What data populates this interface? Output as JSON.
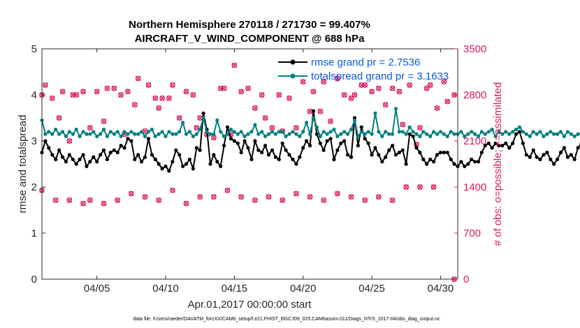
{
  "chart_data": {
    "type": "line",
    "title_line1": "Northern Hemisphere 270118 / 271730 = 99.407%",
    "title_line2": "AIRCRAFT_V_WIND_COMPONENT @ 688 hPa",
    "xlabel": "Apr.01,2017 00:00:00 start",
    "ylabel_left": "rmse and totalspread",
    "ylabel_right": "# of obs: o=possible; ×=assimilated",
    "xlim": [
      1,
      31.25
    ],
    "ylim_left": [
      0,
      5
    ],
    "ylim_right": [
      0,
      3500
    ],
    "x_ticks": [
      {
        "value": 5,
        "label": "04/05"
      },
      {
        "value": 10,
        "label": "04/10"
      },
      {
        "value": 15,
        "label": "04/15"
      },
      {
        "value": 20,
        "label": "04/20"
      },
      {
        "value": 25,
        "label": "04/25"
      },
      {
        "value": 30,
        "label": "04/30"
      }
    ],
    "y_ticks_left": [
      {
        "value": 0,
        "label": "0"
      },
      {
        "value": 1,
        "label": "1"
      },
      {
        "value": 2,
        "label": "2"
      },
      {
        "value": 3,
        "label": "3"
      },
      {
        "value": 4,
        "label": "4"
      },
      {
        "value": 5,
        "label": "5"
      }
    ],
    "y_ticks_right": [
      {
        "value": 0,
        "label": "0"
      },
      {
        "value": 700,
        "label": "700"
      },
      {
        "value": 1400,
        "label": "1400"
      },
      {
        "value": 2100,
        "label": "2100"
      },
      {
        "value": 2800,
        "label": "2800"
      },
      {
        "value": 3500,
        "label": "3500"
      }
    ],
    "x_start": 1,
    "x_step": 0.25,
    "series": [
      {
        "name": "rmse grand pr = 2.7536",
        "color": "#000000",
        "axis": "left",
        "values": [
          2.75,
          3.0,
          2.85,
          2.7,
          2.6,
          2.8,
          2.65,
          2.55,
          2.7,
          2.6,
          2.5,
          2.6,
          2.7,
          2.45,
          2.55,
          2.65,
          2.55,
          2.7,
          2.8,
          2.6,
          2.75,
          2.8,
          2.75,
          2.9,
          2.85,
          3.05,
          3.0,
          2.6,
          2.7,
          2.55,
          2.65,
          3.05,
          2.7,
          2.6,
          2.5,
          2.4,
          2.45,
          2.35,
          2.55,
          2.8,
          2.7,
          2.45,
          2.5,
          2.6,
          2.4,
          2.85,
          2.8,
          3.6,
          3.25,
          2.5,
          2.7,
          2.55,
          2.45,
          2.9,
          3.3,
          3.05,
          3.0,
          2.95,
          2.75,
          3.0,
          2.85,
          2.6,
          3.0,
          2.8,
          2.75,
          2.9,
          2.7,
          2.8,
          2.65,
          2.6,
          2.95,
          2.8,
          2.7,
          2.6,
          2.5,
          2.65,
          2.85,
          3.0,
          2.9,
          3.65,
          3.15,
          2.95,
          2.8,
          3.0,
          3.05,
          2.6,
          2.8,
          2.95,
          3.0,
          2.7,
          2.65,
          3.5,
          2.9,
          3.3,
          3.05,
          2.95,
          2.7,
          2.85,
          2.7,
          2.55,
          2.65,
          2.8,
          2.9,
          2.7,
          2.75,
          2.8,
          2.5,
          3.15,
          3.1,
          2.85,
          2.75,
          2.6,
          2.5,
          2.6,
          2.55,
          2.7,
          2.75,
          2.75,
          2.75,
          2.6,
          2.5,
          2.45,
          2.55,
          2.45,
          2.5,
          2.6,
          2.55,
          2.55,
          2.75,
          2.9,
          2.95,
          2.85,
          2.95,
          2.9,
          2.9,
          2.95,
          2.85,
          2.95,
          3.15,
          3.2,
          2.95,
          2.7,
          2.65,
          2.8,
          2.65,
          2.6,
          2.7,
          2.75,
          2.6,
          2.5,
          2.6,
          2.75,
          2.85,
          2.65,
          2.7,
          2.6,
          2.85,
          2.95
        ]
      },
      {
        "name": "totalspread grand pr = 3.1633",
        "color": "#008080",
        "axis": "left",
        "values": [
          3.45,
          3.15,
          3.2,
          3.15,
          3.25,
          3.15,
          3.2,
          3.1,
          3.2,
          3.15,
          3.25,
          3.1,
          3.2,
          3.15,
          3.15,
          3.2,
          3.1,
          3.15,
          3.25,
          3.1,
          3.2,
          3.15,
          3.2,
          3.1,
          3.2,
          3.15,
          3.2,
          3.15,
          3.15,
          3.2,
          3.1,
          3.2,
          3.25,
          3.1,
          3.15,
          3.2,
          3.1,
          3.2,
          3.15,
          3.15,
          3.2,
          3.4,
          3.15,
          3.2,
          3.1,
          3.15,
          3.25,
          3.5,
          3.2,
          3.15,
          3.15,
          3.45,
          3.2,
          3.1,
          3.15,
          3.25,
          3.2,
          3.15,
          3.2,
          3.1,
          3.15,
          3.2,
          3.35,
          3.15,
          3.2,
          3.1,
          3.15,
          3.2,
          3.15,
          3.2,
          3.2,
          3.1,
          3.15,
          3.2,
          3.15,
          3.1,
          3.2,
          3.4,
          3.15,
          3.5,
          3.3,
          3.1,
          3.2,
          3.15,
          3.2,
          3.25,
          3.1,
          3.15,
          3.2,
          3.15,
          3.25,
          3.45,
          3.1,
          3.2,
          3.15,
          3.2,
          3.15,
          3.6,
          3.2,
          3.1,
          3.2,
          3.15,
          3.15,
          3.7,
          3.2,
          3.2,
          3.15,
          3.3,
          3.2,
          3.15,
          3.1,
          3.2,
          3.15,
          3.1,
          3.2,
          3.15,
          3.2,
          3.15,
          3.1,
          3.2,
          3.15,
          3.15,
          3.2,
          3.1,
          3.15,
          3.2,
          3.15,
          3.1,
          3.2,
          3.15,
          3.2,
          3.25,
          3.1,
          3.2,
          3.15,
          3.2,
          3.15,
          3.2,
          3.25,
          3.3,
          3.2,
          3.15,
          3.1,
          3.2,
          3.15,
          3.2,
          3.1,
          3.15,
          3.2,
          3.15,
          3.15,
          3.2,
          3.1,
          3.2,
          3.15,
          3.1,
          3.15,
          3.15,
          3.2,
          3.2
        ]
      }
    ],
    "obs_possible": [
      {
        "x": 1.0,
        "y": 2800
      },
      {
        "x": 1.25,
        "y": 2950
      },
      {
        "x": 1.75,
        "y": 2750
      },
      {
        "x": 2.25,
        "y": 2450
      },
      {
        "x": 2.5,
        "y": 2850
      },
      {
        "x": 3.0,
        "y": 2100
      },
      {
        "x": 3.25,
        "y": 2800
      },
      {
        "x": 3.5,
        "y": 2800
      },
      {
        "x": 4.0,
        "y": 2850
      },
      {
        "x": 4.5,
        "y": 2300
      },
      {
        "x": 5.0,
        "y": 2850
      },
      {
        "x": 5.5,
        "y": 2400
      },
      {
        "x": 5.75,
        "y": 2900
      },
      {
        "x": 6.25,
        "y": 2900
      },
      {
        "x": 6.75,
        "y": 2800
      },
      {
        "x": 7.0,
        "y": 2200
      },
      {
        "x": 7.25,
        "y": 2850
      },
      {
        "x": 7.75,
        "y": 2650
      },
      {
        "x": 8.0,
        "y": 3050
      },
      {
        "x": 8.5,
        "y": 2250
      },
      {
        "x": 8.75,
        "y": 2950
      },
      {
        "x": 9.25,
        "y": 2750
      },
      {
        "x": 9.5,
        "y": 2600
      },
      {
        "x": 9.75,
        "y": 2750
      },
      {
        "x": 10.25,
        "y": 2750
      },
      {
        "x": 10.5,
        "y": 2950
      },
      {
        "x": 11.0,
        "y": 2450
      },
      {
        "x": 11.5,
        "y": 2850
      },
      {
        "x": 12.0,
        "y": 2800
      },
      {
        "x": 12.25,
        "y": 2300
      },
      {
        "x": 12.5,
        "y": 2450
      },
      {
        "x": 13.0,
        "y": 2200
      },
      {
        "x": 13.5,
        "y": 2150
      },
      {
        "x": 14.0,
        "y": 2900
      },
      {
        "x": 14.25,
        "y": 2900
      },
      {
        "x": 14.75,
        "y": 2200
      },
      {
        "x": 15.0,
        "y": 3250
      },
      {
        "x": 15.5,
        "y": 2850
      },
      {
        "x": 16.0,
        "y": 2900
      },
      {
        "x": 16.5,
        "y": 2600
      },
      {
        "x": 17.0,
        "y": 2800
      },
      {
        "x": 17.25,
        "y": 2450
      },
      {
        "x": 17.75,
        "y": 2300
      },
      {
        "x": 18.25,
        "y": 2800
      },
      {
        "x": 18.5,
        "y": 2250
      },
      {
        "x": 19.0,
        "y": 2750
      },
      {
        "x": 19.5,
        "y": 2300
      },
      {
        "x": 20.0,
        "y": 3000
      },
      {
        "x": 20.5,
        "y": 2550
      },
      {
        "x": 20.75,
        "y": 2850
      },
      {
        "x": 21.25,
        "y": 2550
      },
      {
        "x": 21.5,
        "y": 3000
      },
      {
        "x": 22.0,
        "y": 2400
      },
      {
        "x": 22.5,
        "y": 3050
      },
      {
        "x": 23.0,
        "y": 2800
      },
      {
        "x": 23.5,
        "y": 2750
      },
      {
        "x": 23.75,
        "y": 2800
      },
      {
        "x": 24.25,
        "y": 2950
      },
      {
        "x": 24.5,
        "y": 2950
      },
      {
        "x": 25.0,
        "y": 2850
      },
      {
        "x": 25.5,
        "y": 2900
      },
      {
        "x": 26.0,
        "y": 2650
      },
      {
        "x": 26.5,
        "y": 2900
      },
      {
        "x": 27.0,
        "y": 2850
      },
      {
        "x": 27.25,
        "y": 2350
      },
      {
        "x": 27.75,
        "y": 2950
      },
      {
        "x": 28.25,
        "y": 2050
      },
      {
        "x": 28.5,
        "y": 2300
      },
      {
        "x": 29.0,
        "y": 2900
      },
      {
        "x": 29.25,
        "y": 2950
      },
      {
        "x": 29.75,
        "y": 2600
      },
      {
        "x": 30.25,
        "y": 3000
      },
      {
        "x": 30.5,
        "y": 2700
      },
      {
        "x": 31.0,
        "y": 2800
      },
      {
        "x": 1.0,
        "y": 1350
      },
      {
        "x": 2.0,
        "y": 1200
      },
      {
        "x": 3.0,
        "y": 1200
      },
      {
        "x": 4.0,
        "y": 1150
      },
      {
        "x": 4.5,
        "y": 1200
      },
      {
        "x": 5.5,
        "y": 1150
      },
      {
        "x": 6.5,
        "y": 1200
      },
      {
        "x": 7.5,
        "y": 1300
      },
      {
        "x": 8.5,
        "y": 1250
      },
      {
        "x": 9.5,
        "y": 1200
      },
      {
        "x": 10.5,
        "y": 1350
      },
      {
        "x": 11.5,
        "y": 1150
      },
      {
        "x": 12.5,
        "y": 1250
      },
      {
        "x": 13.5,
        "y": 1250
      },
      {
        "x": 14.5,
        "y": 1350
      },
      {
        "x": 15.5,
        "y": 1250
      },
      {
        "x": 16.5,
        "y": 1200
      },
      {
        "x": 17.5,
        "y": 1250
      },
      {
        "x": 18.5,
        "y": 1200
      },
      {
        "x": 19.5,
        "y": 1300
      },
      {
        "x": 20.5,
        "y": 1250
      },
      {
        "x": 21.5,
        "y": 1200
      },
      {
        "x": 22.5,
        "y": 1300
      },
      {
        "x": 23.5,
        "y": 1250
      },
      {
        "x": 24.5,
        "y": 1200
      },
      {
        "x": 25.5,
        "y": 1250
      },
      {
        "x": 26.5,
        "y": 1200
      },
      {
        "x": 27.5,
        "y": 1400
      },
      {
        "x": 28.5,
        "y": 1400
      },
      {
        "x": 29.5,
        "y": 1400
      },
      {
        "x": 31.0,
        "y": 0
      }
    ],
    "obs_assimilated_note": "x markers coincide with o markers"
  }
}
